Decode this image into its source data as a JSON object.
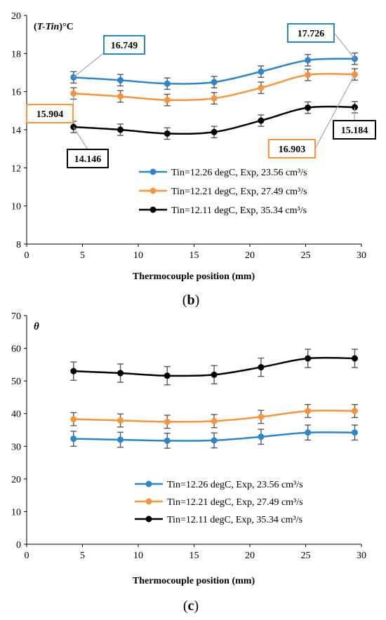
{
  "chart_data": [
    {
      "type": "line",
      "panel_label": "(b)",
      "ylabel_prefix": "(",
      "ylabel_italic": "T-Tin",
      "ylabel_suffix": ")°C",
      "xlabel": "Thermocouple position (mm)",
      "xlim": [
        0,
        30
      ],
      "ylim": [
        8,
        20
      ],
      "xticks": [
        0,
        5,
        10,
        15,
        20,
        25,
        30
      ],
      "yticks": [
        8,
        10,
        12,
        14,
        16,
        18,
        20
      ],
      "x": [
        4.2,
        8.4,
        12.6,
        16.8,
        21.0,
        25.2,
        29.4
      ],
      "legend_position": "lower-right",
      "series": [
        {
          "name": "Tin=12.26 degC, Exp, 23.56 cm³/s",
          "color": "#2e86c9",
          "values": [
            16.749,
            16.6,
            16.42,
            16.5,
            17.05,
            17.65,
            17.726
          ],
          "error": [
            0.3,
            0.3,
            0.3,
            0.3,
            0.3,
            0.3,
            0.3
          ]
        },
        {
          "name": "Tin=12.21 degC, Exp, 27.49 cm³/s",
          "color": "#f7943c",
          "values": [
            15.904,
            15.75,
            15.56,
            15.65,
            16.2,
            16.88,
            16.903
          ],
          "error": [
            0.3,
            0.3,
            0.3,
            0.3,
            0.3,
            0.3,
            0.3
          ]
        },
        {
          "name": "Tin=12.11 degC, Exp, 35.34 cm³/s",
          "color": "#000000",
          "values": [
            14.146,
            14.0,
            13.8,
            13.88,
            14.48,
            15.16,
            15.184
          ],
          "error": [
            0.3,
            0.3,
            0.3,
            0.3,
            0.3,
            0.3,
            0.3
          ]
        }
      ],
      "annotations": [
        {
          "text": "16.749",
          "border": "#2e86c9",
          "series": 0,
          "point": 0
        },
        {
          "text": "17.726",
          "border": "#2e86c9",
          "series": 0,
          "point": 6
        },
        {
          "text": "15.904",
          "border": "#f7943c",
          "series": 1,
          "point": 0
        },
        {
          "text": "16.903",
          "border": "#f7943c",
          "series": 1,
          "point": 6
        },
        {
          "text": "14.146",
          "border": "#000000",
          "series": 2,
          "point": 0
        },
        {
          "text": "15.184",
          "border": "#000000",
          "series": 2,
          "point": 6
        }
      ]
    },
    {
      "type": "line",
      "panel_label": "(c)",
      "ylabel_italic": "θ",
      "xlabel": "Thermocouple position (mm)",
      "xlim": [
        0,
        30
      ],
      "ylim": [
        0,
        70
      ],
      "xticks": [
        0,
        5,
        10,
        15,
        20,
        25,
        30
      ],
      "yticks": [
        0,
        10,
        20,
        30,
        40,
        50,
        60,
        70
      ],
      "x": [
        4.2,
        8.4,
        12.6,
        16.8,
        21.0,
        25.2,
        29.4
      ],
      "legend_position": "lower-right",
      "series": [
        {
          "name": "Tin=12.26 degC, Exp, 23.56 cm³/s",
          "color": "#2e86c9",
          "values": [
            32.3,
            32.0,
            31.7,
            31.8,
            32.9,
            34.2,
            34.2
          ],
          "error": [
            2.3,
            2.3,
            2.3,
            2.3,
            2.3,
            2.3,
            2.3
          ]
        },
        {
          "name": "Tin=12.21 degC, Exp, 27.49 cm³/s",
          "color": "#f7943c",
          "values": [
            38.3,
            37.9,
            37.5,
            37.7,
            39.0,
            40.8,
            40.8
          ],
          "error": [
            2.0,
            2.0,
            2.0,
            2.0,
            2.0,
            2.0,
            2.0
          ]
        },
        {
          "name": "Tin=12.11 degC, Exp, 35.34 cm³/s",
          "color": "#000000",
          "values": [
            53.0,
            52.4,
            51.6,
            51.9,
            54.2,
            56.9,
            56.9
          ],
          "error": [
            2.8,
            2.8,
            2.8,
            2.8,
            2.8,
            2.8,
            2.8
          ]
        }
      ]
    }
  ]
}
